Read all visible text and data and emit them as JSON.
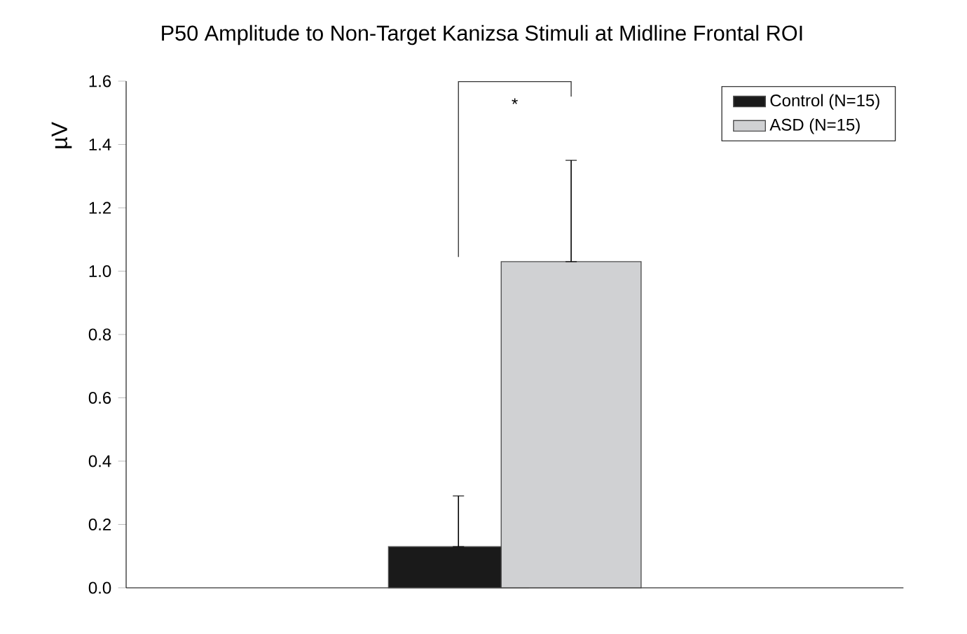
{
  "chart_data": {
    "type": "bar",
    "title": "P50 Amplitude to Non-Target Kanizsa Stimuli at Midline Frontal ROI",
    "ylabel": "µV",
    "categories": [
      null
    ],
    "series": [
      {
        "name": "Control (N=15)",
        "color": "#1a1a1a",
        "values": [
          0.13
        ],
        "errors": [
          [
            0.13,
            0.29
          ]
        ]
      },
      {
        "name": "ASD (N=15)",
        "color": "#d0d1d3",
        "values": [
          1.03
        ],
        "errors": [
          [
            1.03,
            1.35
          ]
        ]
      }
    ],
    "ylim": [
      0,
      1.6
    ],
    "yticks": [
      {
        "value": 0,
        "label": "0.0"
      },
      {
        "value": 0.2,
        "label": "0.2"
      },
      {
        "value": 0.4,
        "label": "0.4"
      },
      {
        "value": 0.6,
        "label": "0.6"
      },
      {
        "value": 0.8,
        "label": "0.8"
      },
      {
        "value": 1,
        "label": "1.0"
      },
      {
        "value": 1.2,
        "label": "1.2"
      },
      {
        "value": 1.4,
        "label": "1.4"
      },
      {
        "value": 1.6,
        "label": "1.6"
      }
    ],
    "legend": "top right",
    "annotations": [
      "*"
    ]
  }
}
